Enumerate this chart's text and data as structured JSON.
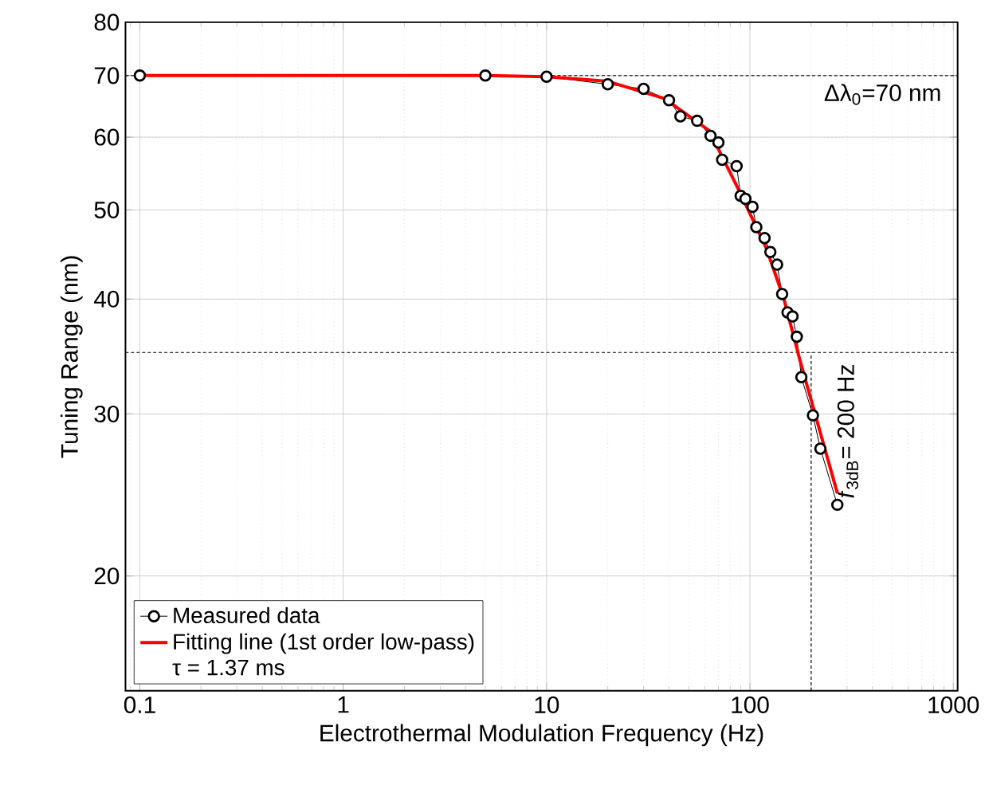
{
  "chart_data": {
    "type": "line",
    "xlabel": "Electrothermal Modulation Frequency (Hz)",
    "ylabel": "Tuning Range (nm)",
    "log": "xy",
    "xlim": [
      0.085,
      1050
    ],
    "ylim": [
      15,
      80
    ],
    "xticks": [
      0.1,
      1,
      10,
      100,
      1000
    ],
    "yticks": [
      20,
      30,
      40,
      50,
      60,
      70,
      80
    ],
    "grid": true,
    "legend": "bottom left",
    "series": [
      {
        "name": "Measured data",
        "color": "#000000",
        "marker": "circle",
        "x": [
          0.1,
          5,
          10,
          20,
          30,
          40,
          45.5,
          55,
          64,
          70,
          73,
          86,
          90,
          95,
          103,
          107.5,
          118,
          126,
          136,
          144,
          153,
          162,
          170,
          179,
          204,
          222,
          269
        ],
        "values": [
          70,
          70,
          69.8,
          68.5,
          67.7,
          65.8,
          63.2,
          62.5,
          60.2,
          59.2,
          56.7,
          55.8,
          51.8,
          51.4,
          50.4,
          47.9,
          46.6,
          45,
          43.6,
          40.5,
          38.7,
          38.3,
          36.4,
          32.9,
          29.9,
          27.5,
          23.9
        ]
      },
      {
        "name": "Fitting line (1st order low-pass)",
        "color": "#ff0000",
        "marker": "none",
        "x": [
          0.1,
          5,
          10,
          20,
          38,
          63,
          88,
          120,
          147,
          175,
          269
        ],
        "values": [
          70,
          70,
          69.8,
          69,
          66.1,
          61,
          52.6,
          45.5,
          40,
          34.5,
          24.6
        ]
      }
    ],
    "ref_lines": [
      {
        "axis": "y",
        "value": 70,
        "label": "Δλ$_{0}$=70 nm",
        "line_style": "dashed",
        "color": "#000000"
      },
      {
        "axis": "y",
        "value": 35,
        "label": null,
        "line_style": "dashed",
        "color": "#000000"
      },
      {
        "axis": "x",
        "value": 200,
        "label": "*f*$_{3dB}$= 200 Hz",
        "line_style": "dashed",
        "color": "#000000"
      }
    ],
    "annotations": [
      "τ = 1.37 ms"
    ]
  }
}
